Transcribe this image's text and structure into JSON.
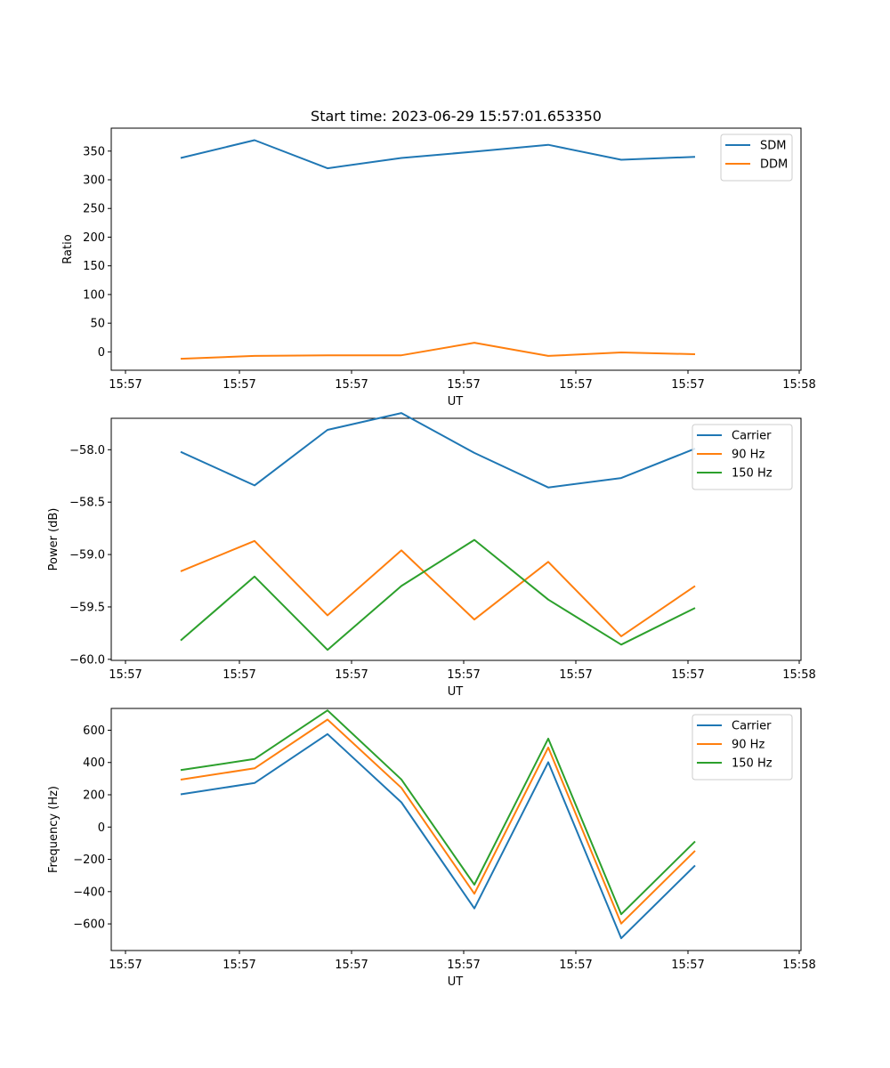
{
  "chart_data": [
    {
      "type": "line",
      "title": "Start time: 2023-06-29 15:57:01.653350",
      "xlabel": "UT",
      "ylabel": "Ratio",
      "xticks": [
        "15:57",
        "15:57",
        "15:57",
        "15:57",
        "15:57",
        "15:57",
        "15:57",
        "15:58"
      ],
      "ylim": [
        -32,
        390
      ],
      "yticks": [
        0,
        50,
        100,
        150,
        200,
        250,
        300,
        350
      ],
      "legend": "upper-right",
      "series": [
        {
          "name": "SDM",
          "color": "#1f77b4",
          "values": [
            338,
            369,
            320,
            338,
            349,
            361,
            335,
            340
          ]
        },
        {
          "name": "DDM",
          "color": "#ff7f0e",
          "values": [
            -12,
            -7,
            -6,
            -6,
            16,
            -7,
            -1,
            -4
          ]
        }
      ]
    },
    {
      "type": "line",
      "title": "",
      "xlabel": "UT",
      "ylabel": "Power (dB)",
      "xticks": [
        "15:57",
        "15:57",
        "15:57",
        "15:57",
        "15:57",
        "15:57",
        "15:57",
        "15:58"
      ],
      "ylim": [
        -60.01,
        -57.7
      ],
      "yticks": [
        -60.0,
        -59.5,
        -59.0,
        -58.5,
        -58.0
      ],
      "legend": "upper-right",
      "series": [
        {
          "name": "Carrier",
          "color": "#1f77b4",
          "values": [
            -58.02,
            -58.34,
            -57.81,
            -57.65,
            -58.03,
            -58.36,
            -58.27,
            -57.99
          ]
        },
        {
          "name": "90 Hz",
          "color": "#ff7f0e",
          "values": [
            -59.16,
            -58.87,
            -59.58,
            -58.96,
            -59.62,
            -59.07,
            -59.78,
            -59.3
          ]
        },
        {
          "name": "150 Hz",
          "color": "#2ca02c",
          "values": [
            -59.82,
            -59.21,
            -59.91,
            -59.3,
            -58.86,
            -59.43,
            -59.86,
            -59.51
          ]
        }
      ]
    },
    {
      "type": "line",
      "title": "",
      "xlabel": "UT",
      "ylabel": "Frequency (Hz)",
      "xticks": [
        "15:57",
        "15:57",
        "15:57",
        "15:57",
        "15:57",
        "15:57",
        "15:57",
        "15:58"
      ],
      "ylim": [
        -765,
        735
      ],
      "yticks": [
        -600,
        -400,
        -200,
        0,
        200,
        400,
        600
      ],
      "legend": "upper-right",
      "series": [
        {
          "name": "Carrier",
          "color": "#1f77b4",
          "values": [
            203,
            273,
            576,
            153,
            -504,
            402,
            -689,
            -238
          ]
        },
        {
          "name": "90 Hz",
          "color": "#ff7f0e",
          "values": [
            294,
            364,
            666,
            243,
            -413,
            493,
            -598,
            -147
          ]
        },
        {
          "name": "150 Hz",
          "color": "#2ca02c",
          "values": [
            353,
            422,
            723,
            295,
            -357,
            548,
            -540,
            -89
          ]
        }
      ]
    }
  ]
}
